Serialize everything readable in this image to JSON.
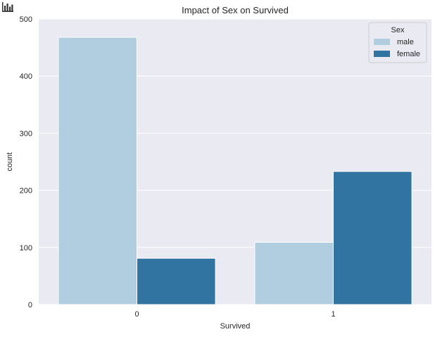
{
  "chart_data": {
    "type": "bar",
    "title": "Impact of Sex on Survived",
    "xlabel": "Survived",
    "ylabel": "count",
    "categories": [
      "0",
      "1"
    ],
    "series": [
      {
        "name": "male",
        "values": [
          468,
          109
        ],
        "color": "#b1cde0"
      },
      {
        "name": "female",
        "values": [
          81,
          233
        ],
        "color": "#3274a1"
      }
    ],
    "ylim": [
      0,
      500
    ],
    "yticks": [
      "0",
      "100",
      "200",
      "300",
      "400",
      "500"
    ],
    "grid": true,
    "legend": {
      "title": "Sex",
      "placement": "top-right"
    },
    "background_color": "#eaeaf2"
  },
  "icon": "bar-chart-icon"
}
